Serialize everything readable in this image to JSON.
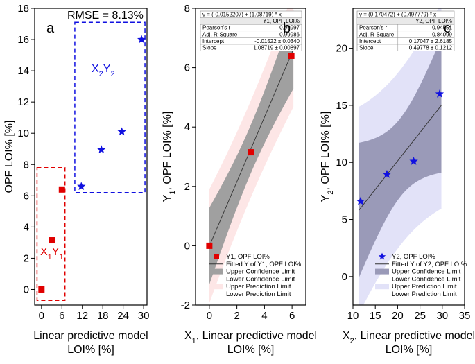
{
  "chart_data": [
    {
      "type": "scatter",
      "panel": "a",
      "xlabel_line1": "Linear predictive model",
      "xlabel_line2": "LOI% [%]",
      "ylabel": "OPF LOI% [%]",
      "xlim": [
        -2,
        31
      ],
      "ylim": [
        -1,
        18
      ],
      "xticks": [
        0,
        6,
        12,
        18,
        24,
        30
      ],
      "yticks": [
        0,
        2,
        4,
        6,
        8,
        10,
        12,
        14,
        16,
        18
      ],
      "annotation": "RMSE = 8.13%",
      "groups": [
        {
          "name": "X1Y1",
          "label_main1": "X",
          "label_sub1": "1",
          "label_main2": "Y",
          "label_sub2": "1",
          "color": "#e00000",
          "marker": "square",
          "points": [
            [
              0.0,
              0.0
            ],
            [
              3.1,
              3.15
            ],
            [
              6.0,
              6.4
            ]
          ],
          "box": [
            -1.3,
            6.9,
            -0.7,
            7.8
          ]
        },
        {
          "name": "X2Y2",
          "label_main1": "X",
          "label_sub1": "2",
          "label_main2": "Y",
          "label_sub2": "2",
          "color": "#1010e0",
          "marker": "star",
          "points": [
            [
              11.7,
              6.6
            ],
            [
              17.6,
              8.95
            ],
            [
              23.6,
              10.1
            ],
            [
              29.4,
              16.0
            ]
          ],
          "box": [
            9.8,
            30.4,
            6.2,
            17.1
          ]
        }
      ]
    },
    {
      "type": "scatter",
      "panel": "b",
      "xlabel_line1": "X",
      "xlabel_sub": "1",
      "xlabel_rest": ", Linear predictive model",
      "xlabel_line2": "LOI% [%]",
      "ylabel_main": "Y",
      "ylabel_sub": "1",
      "ylabel_rest": ", OPF LOI% [%]",
      "xlim": [
        -1,
        7
      ],
      "ylim": [
        -2,
        8
      ],
      "xticks": [
        0,
        2,
        4,
        6
      ],
      "yticks": [
        -2,
        0,
        2,
        4,
        6,
        8
      ],
      "points": [
        [
          0.0,
          0.0
        ],
        [
          3.0,
          3.15
        ],
        [
          5.95,
          6.4
        ]
      ],
      "fit": {
        "intercept": -0.0152207,
        "slope": 1.08719
      },
      "equation": "y = (-0.0152207) + (1.08719) * x",
      "stats_header": "Y1, OPF LOI%",
      "stats": [
        {
          "name": "Pearson's r",
          "value": "0.99997"
        },
        {
          "name": "Adj. R-Square",
          "value": "0.99986"
        },
        {
          "name": "Intercept",
          "value": "-0.01522 ± 0.0340"
        },
        {
          "name": "Slope",
          "value": "1.08719 ± 0.00897"
        }
      ],
      "legend": [
        "Y1, OPF LOI%",
        "Fitted Y of Y1, OPF LOI%",
        "Upper Confidence Limit",
        "Lower Confidence Limit",
        "Upper Prediction Limit",
        "Lower Prediction Limit"
      ],
      "point_color": "#e00000",
      "band_confidence_color": "#a0a0a0",
      "band_prediction_color": "#fde6e6"
    },
    {
      "type": "scatter",
      "panel": "c",
      "xlabel_line1": "X",
      "xlabel_sub": "2",
      "xlabel_rest": ", Linear predictive model",
      "xlabel_line2": "LOI% [%]",
      "ylabel_main": "Y",
      "ylabel_sub": "2",
      "ylabel_rest": ", OPF LOI% [%]",
      "xlim": [
        10,
        35
      ],
      "ylim": [
        -2.5,
        23.5
      ],
      "xticks": [
        10,
        15,
        20,
        25,
        30,
        35
      ],
      "yticks": [
        0,
        5,
        10,
        15,
        20
      ],
      "points": [
        [
          11.7,
          6.6
        ],
        [
          17.6,
          8.95
        ],
        [
          23.6,
          10.1
        ],
        [
          29.4,
          16.0
        ]
      ],
      "fit": {
        "intercept": 0.170472,
        "slope": 0.497779
      },
      "equation": "y = (0.170472) + (0.497779) * x",
      "stats_header": "Y2, OPF LOI%",
      "stats": [
        {
          "name": "Pearson's r",
          "value": "0.94551"
        },
        {
          "name": "Adj. R-Square",
          "value": "0.84099"
        },
        {
          "name": "Intercept",
          "value": "0.17047 ± 2.6185"
        },
        {
          "name": "Slope",
          "value": "0.49778 ± 0.1212"
        }
      ],
      "legend": [
        "Y2, OPF LOI%",
        "Fitted Y of Y2, OPF LOI%",
        "Upper Confidence Limit",
        "Lower Confidence Limit",
        "Upper Prediction Limit",
        "Lower Prediction Limit"
      ],
      "point_color": "#1010e0",
      "band_confidence_color": "#9a9ab8",
      "band_prediction_color": "#e2e2f8"
    }
  ]
}
